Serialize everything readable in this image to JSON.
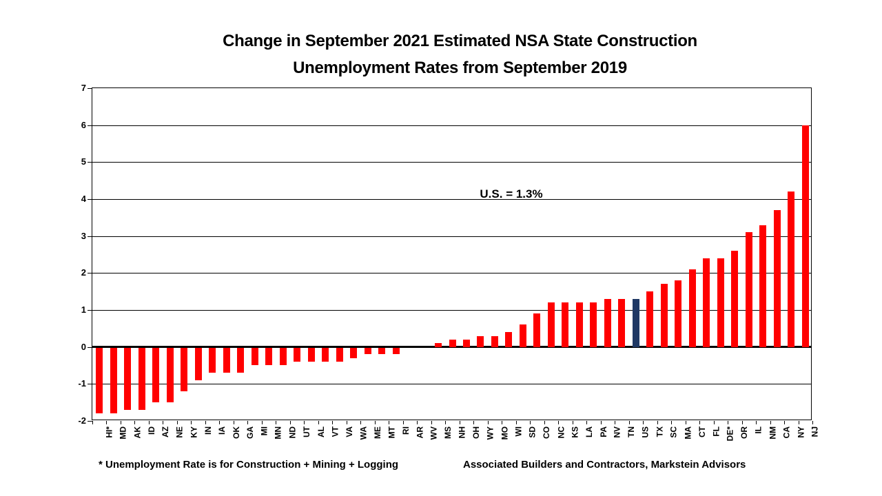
{
  "title": {
    "line1": "Change in September 2021 Estimated NSA State Construction",
    "line2": "Unemployment Rates from September 2019"
  },
  "annotation": {
    "us_label": "U.S. = 1.3%"
  },
  "footnotes": {
    "left": "* Unemployment Rate is for Construction + Mining + Logging",
    "right": "Associated Builders and Contractors, Markstein Advisors"
  },
  "colors": {
    "bar": "#FF0000",
    "highlight_bar": "#1F3864",
    "grid": "#000000",
    "background": "#FFFFFF"
  },
  "chart_data": {
    "type": "bar",
    "title": "Change in September 2021 Estimated NSA State Construction Unemployment Rates from September 2019",
    "xlabel": "",
    "ylabel": "",
    "ylim": [
      -2,
      7
    ],
    "yticks": [
      7,
      6,
      5,
      4,
      3,
      2,
      1,
      0,
      -1,
      -2
    ],
    "grid": true,
    "legend_position": "none",
    "annotation": "U.S. = 1.3%",
    "highlight_category": "US",
    "categories": [
      "HI*",
      "MD",
      "AK",
      "ID",
      "AZ",
      "NE",
      "KY",
      "IN",
      "IA",
      "OK",
      "GA",
      "MI",
      "MN",
      "ND",
      "UT",
      "AL",
      "VT",
      "VA",
      "WA",
      "ME",
      "MT",
      "RI",
      "AR",
      "WV",
      "MS",
      "NH",
      "OH",
      "WY",
      "MO",
      "WI",
      "SD",
      "CO",
      "NC",
      "KS",
      "LA",
      "PA",
      "NV",
      "TN",
      "US",
      "TX",
      "SC",
      "MA",
      "CT",
      "FL",
      "DE*",
      "OR",
      "IL",
      "NM",
      "CA",
      "NY",
      "NJ"
    ],
    "values": [
      -1.8,
      -1.8,
      -1.7,
      -1.7,
      -1.5,
      -1.5,
      -1.2,
      -0.9,
      -0.7,
      -0.7,
      -0.7,
      -0.5,
      -0.5,
      -0.5,
      -0.4,
      -0.4,
      -0.4,
      -0.4,
      -0.3,
      -0.2,
      -0.2,
      -0.2,
      0.0,
      0.0,
      0.1,
      0.2,
      0.2,
      0.3,
      0.3,
      0.4,
      0.6,
      0.9,
      1.2,
      1.2,
      1.2,
      1.2,
      1.3,
      1.3,
      1.3,
      1.5,
      1.7,
      1.8,
      2.1,
      2.4,
      2.4,
      2.6,
      3.1,
      3.3,
      3.7,
      4.2,
      6.0
    ]
  }
}
